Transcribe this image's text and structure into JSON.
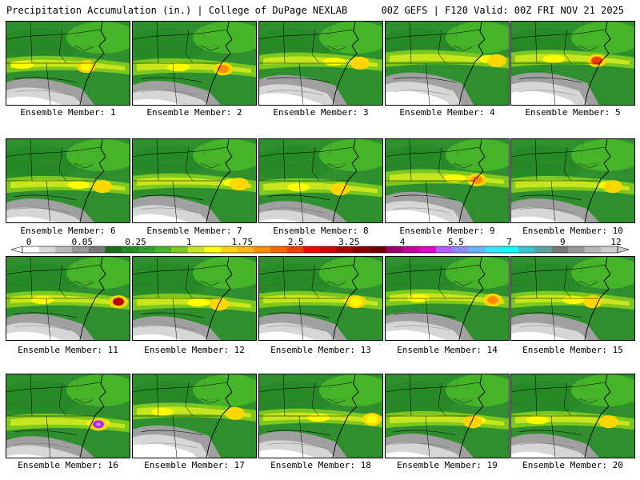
{
  "header": {
    "title": "Precipitation Accumulation (in.) | College of DuPage NEXLAB",
    "run": "00Z GEFS | F120 Valid: 00Z FRI NOV 21 2025"
  },
  "panels": [
    {
      "label": "Ensemble Member: 1",
      "band": 0.52,
      "max": 1.0
    },
    {
      "label": "Ensemble Member: 2",
      "band": 0.55,
      "max": 2.2
    },
    {
      "label": "Ensemble Member: 3",
      "band": 0.48,
      "max": 1.3
    },
    {
      "label": "Ensemble Member: 4",
      "band": 0.45,
      "max": 1.2
    },
    {
      "label": "Ensemble Member: 5",
      "band": 0.45,
      "max": 2.4
    },
    {
      "label": "Ensemble Member: 6",
      "band": 0.55,
      "max": 1.6
    },
    {
      "label": "Ensemble Member: 7",
      "band": 0.52,
      "max": 1.5
    },
    {
      "label": "Ensemble Member: 8",
      "band": 0.58,
      "max": 1.3
    },
    {
      "label": "Ensemble Member: 9",
      "band": 0.47,
      "max": 2.0
    },
    {
      "label": "Ensemble Member: 10",
      "band": 0.55,
      "max": 1.2
    },
    {
      "label": "Ensemble Member: 11",
      "band": 0.52,
      "max": 3.0
    },
    {
      "label": "Ensemble Member: 12",
      "band": 0.55,
      "max": 1.3
    },
    {
      "label": "Ensemble Member: 13",
      "band": 0.52,
      "max": 1.1
    },
    {
      "label": "Ensemble Member: 14",
      "band": 0.5,
      "max": 1.8
    },
    {
      "label": "Ensemble Member: 15",
      "band": 0.52,
      "max": 1.2
    },
    {
      "label": "Ensemble Member: 16",
      "band": 0.58,
      "max": 6.0
    },
    {
      "label": "Ensemble Member: 17",
      "band": 0.45,
      "max": 1.3
    },
    {
      "label": "Ensemble Member: 18",
      "band": 0.52,
      "max": 1.1
    },
    {
      "label": "Ensemble Member: 19",
      "band": 0.55,
      "max": 1.4
    },
    {
      "label": "Ensemble Member: 20",
      "band": 0.55,
      "max": 1.6
    }
  ],
  "colorbar": {
    "tick_labels": [
      "0",
      "0.05",
      "0.25",
      "1",
      "1.75",
      "2.5",
      "3.25",
      "4",
      "5.5",
      "7",
      "9",
      "12"
    ],
    "colors": [
      "#ffffff",
      "#d9d9d9",
      "#b8b8b8",
      "#989898",
      "#787878",
      "#1a6b1a",
      "#268a26",
      "#2e9e2e",
      "#46b428",
      "#7cc81e",
      "#c8e61e",
      "#ffff00",
      "#ffd700",
      "#ffb400",
      "#ff8c00",
      "#ff6400",
      "#ff3c00",
      "#ff0000",
      "#d70000",
      "#af0000",
      "#8c0000",
      "#6e0000",
      "#a0006e",
      "#c8009b",
      "#e600c8",
      "#b45aff",
      "#8c8cff",
      "#64b4ff",
      "#32e6ff",
      "#00ffff",
      "#32c8c8",
      "#5aa0a0",
      "#787878",
      "#989898",
      "#b8b8b8",
      "#d0d0d0"
    ]
  }
}
